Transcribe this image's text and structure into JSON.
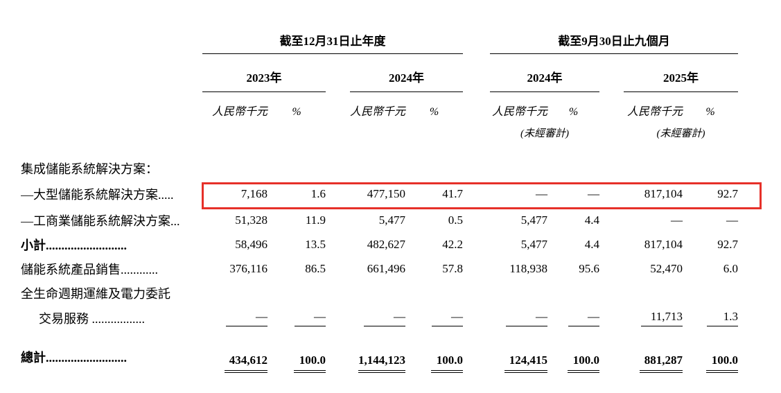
{
  "table": {
    "period_headers": [
      "截至12月31日止年度",
      "截至9月30日止九個月"
    ],
    "year_headers": [
      "2023年",
      "2024年",
      "2024年",
      "2025年"
    ],
    "col_headers": {
      "rmb": "人民幣千元",
      "pct": "%"
    },
    "unaudited": "(未經審計)",
    "rows": [
      {
        "label": "集成儲能系統解決方案：",
        "style": "section",
        "values": [
          "",
          "",
          "",
          "",
          "",
          "",
          "",
          ""
        ]
      },
      {
        "label": "—大型儲能系統解決方案.....",
        "style": "normal",
        "highlight": true,
        "values": [
          "7,168",
          "1.6",
          "477,150",
          "41.7",
          "—",
          "—",
          "817,104",
          "92.7"
        ]
      },
      {
        "label": "—工商業儲能系統解決方案...",
        "style": "normal",
        "values": [
          "51,328",
          "11.9",
          "5,477",
          "0.5",
          "5,477",
          "4.4",
          "—",
          "—"
        ]
      },
      {
        "label": "小計..........................",
        "style": "subtotal",
        "values": [
          "58,496",
          "13.5",
          "482,627",
          "42.2",
          "5,477",
          "4.4",
          "817,104",
          "92.7"
        ]
      },
      {
        "label": "儲能系統產品銷售............",
        "style": "normal",
        "values": [
          "376,116",
          "86.5",
          "661,496",
          "57.8",
          "118,938",
          "95.6",
          "52,470",
          "6.0"
        ]
      },
      {
        "label": "全生命週期運維及電力委託",
        "style": "normal",
        "values": [
          "",
          "",
          "",
          "",
          "",
          "",
          "",
          ""
        ]
      },
      {
        "label": "交易服務 .................",
        "style": "pretotal",
        "indent": true,
        "values": [
          "—",
          "—",
          "—",
          "—",
          "—",
          "—",
          "11,713",
          "1.3"
        ]
      },
      {
        "label": "總計..........................",
        "style": "total",
        "values": [
          "434,612",
          "100.0",
          "1,144,123",
          "100.0",
          "124,415",
          "100.0",
          "881,287",
          "100.0"
        ]
      }
    ]
  },
  "highlight": {
    "color": "#e63029"
  }
}
